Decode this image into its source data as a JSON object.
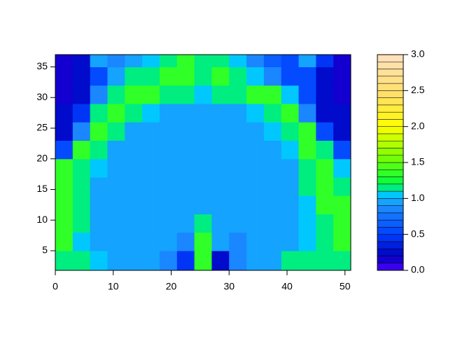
{
  "chart_data": {
    "type": "filled-contour",
    "x_edges": [
      0,
      3,
      6,
      9,
      12,
      15,
      18,
      21,
      24,
      27,
      30,
      33,
      36,
      39,
      42,
      45,
      48,
      51
    ],
    "y_edges": [
      1.8,
      5,
      8,
      11,
      14,
      17,
      20,
      23,
      26,
      29,
      32,
      35,
      37
    ],
    "z": [
      [
        1.2,
        1.1,
        1.0,
        0.9,
        0.9,
        0.9,
        0.8,
        0.4,
        1.3,
        0.3,
        0.8,
        0.9,
        0.9,
        1.2,
        1.2,
        1.2,
        1.2
      ],
      [
        1.3,
        1.0,
        0.9,
        0.9,
        0.9,
        0.9,
        0.9,
        0.8,
        1.4,
        0.9,
        0.8,
        0.9,
        0.9,
        0.9,
        1.0,
        1.2,
        1.3
      ],
      [
        1.3,
        1.1,
        0.9,
        0.9,
        0.9,
        0.9,
        0.9,
        0.9,
        1.1,
        0.9,
        0.9,
        0.9,
        0.9,
        0.9,
        1.0,
        1.2,
        1.3
      ],
      [
        1.3,
        1.1,
        0.9,
        0.9,
        0.9,
        0.9,
        0.9,
        0.9,
        0.9,
        0.9,
        0.9,
        0.9,
        0.9,
        0.9,
        1.0,
        1.3,
        1.3
      ],
      [
        1.3,
        1.2,
        0.9,
        0.9,
        0.9,
        0.9,
        0.9,
        0.9,
        0.9,
        0.9,
        0.9,
        0.9,
        0.9,
        0.9,
        1.1,
        1.3,
        1.2
      ],
      [
        1.3,
        1.2,
        1.0,
        0.9,
        0.9,
        0.9,
        0.9,
        0.9,
        0.9,
        0.9,
        0.9,
        0.9,
        0.9,
        0.9,
        1.2,
        1.3,
        1.0
      ],
      [
        0.6,
        1.3,
        1.1,
        0.9,
        0.9,
        0.9,
        0.9,
        0.9,
        0.9,
        0.9,
        0.9,
        0.9,
        0.9,
        1.0,
        1.3,
        1.2,
        0.6
      ],
      [
        0.3,
        0.8,
        1.3,
        1.1,
        0.9,
        0.9,
        0.9,
        0.9,
        0.9,
        0.9,
        0.9,
        0.9,
        1.0,
        1.2,
        1.3,
        0.5,
        0.3
      ],
      [
        0.2,
        0.4,
        1.2,
        1.3,
        1.2,
        1.0,
        0.9,
        0.9,
        0.9,
        0.9,
        0.9,
        1.0,
        1.2,
        1.3,
        0.8,
        0.3,
        0.2
      ],
      [
        0.1,
        0.3,
        0.8,
        1.2,
        1.3,
        1.3,
        1.2,
        1.1,
        1.0,
        1.1,
        1.2,
        1.3,
        1.3,
        1.0,
        0.6,
        0.3,
        0.1
      ],
      [
        0.1,
        0.3,
        0.6,
        0.9,
        1.1,
        1.2,
        1.3,
        1.3,
        1.2,
        1.3,
        1.2,
        1.0,
        0.8,
        0.6,
        0.5,
        0.3,
        0.1
      ],
      [
        0.1,
        0.2,
        0.9,
        0.8,
        0.9,
        1.0,
        1.1,
        1.3,
        1.2,
        1.2,
        1.0,
        0.8,
        0.7,
        0.5,
        0.9,
        0.4,
        0.1
      ]
    ],
    "xlim": [
      0,
      51
    ],
    "xticks": [
      0,
      10,
      20,
      30,
      40,
      50
    ],
    "ylim": [
      1.8,
      37
    ],
    "yticks": [
      5,
      10,
      15,
      20,
      25,
      30,
      35
    ],
    "zlim": [
      0,
      3
    ],
    "nlevels": 30,
    "zticks": [
      {
        "value": 0,
        "label": "0.0"
      },
      0.5,
      {
        "value": 1,
        "label": "1.0"
      },
      1.5,
      {
        "value": 2,
        "label": "2.0"
      },
      2.5,
      {
        "value": 3,
        "label": "3.0"
      }
    ],
    "palette": [
      {
        "value": 0,
        "color": "#4c00ff"
      },
      {
        "value": 0.2,
        "color": "#0000c0"
      },
      {
        "value": 0.5,
        "color": "#0040ff"
      },
      {
        "value": 0.9,
        "color": "#1e90ff"
      },
      {
        "value": 1.05,
        "color": "#00c8ff"
      },
      {
        "value": 1.2,
        "color": "#00ff40"
      },
      {
        "value": 1.6,
        "color": "#80ff00"
      },
      {
        "value": 2.0,
        "color": "#ffff00"
      },
      {
        "value": 2.4,
        "color": "#ffe060"
      },
      {
        "value": 3.0,
        "color": "#ffe0c0"
      }
    ]
  }
}
